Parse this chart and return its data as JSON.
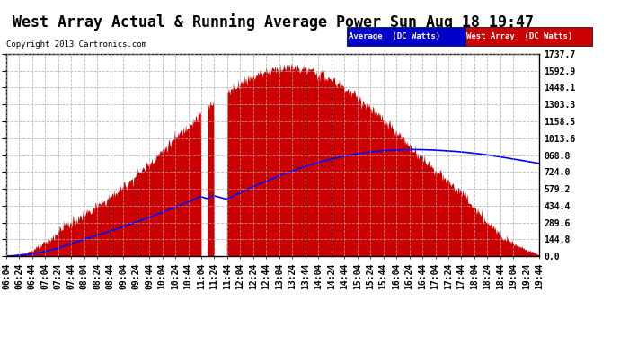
{
  "title": "West Array Actual & Running Average Power Sun Aug 18 19:47",
  "copyright": "Copyright 2013 Cartronics.com",
  "legend_labels": [
    "Average  (DC Watts)",
    "West Array  (DC Watts)"
  ],
  "legend_bg_colors": [
    "#0000cc",
    "#cc0000"
  ],
  "y_ticks": [
    0.0,
    144.8,
    289.6,
    434.4,
    579.2,
    724.0,
    868.8,
    1013.6,
    1158.5,
    1303.3,
    1448.1,
    1592.9,
    1737.7
  ],
  "x_labels": [
    "06:04",
    "06:24",
    "06:44",
    "07:04",
    "07:24",
    "07:44",
    "08:04",
    "08:24",
    "08:44",
    "09:04",
    "09:24",
    "09:44",
    "10:04",
    "10:24",
    "10:44",
    "11:04",
    "11:24",
    "11:44",
    "12:04",
    "12:24",
    "12:44",
    "13:04",
    "13:24",
    "13:44",
    "14:04",
    "14:24",
    "14:44",
    "15:04",
    "15:24",
    "15:44",
    "16:04",
    "16:24",
    "16:44",
    "17:04",
    "17:24",
    "17:44",
    "18:04",
    "18:24",
    "18:44",
    "19:04",
    "19:24",
    "19:44"
  ],
  "bg_color": "#ffffff",
  "plot_bg_color": "#ffffff",
  "grid_color": "#aaaaaa",
  "fill_color": "#cc0000",
  "line_color": "#0000ff",
  "title_fontsize": 12,
  "tick_fontsize": 7,
  "y_max": 1737.7,
  "y_min": 0.0,
  "start_time": "06:04",
  "end_time": "19:44"
}
